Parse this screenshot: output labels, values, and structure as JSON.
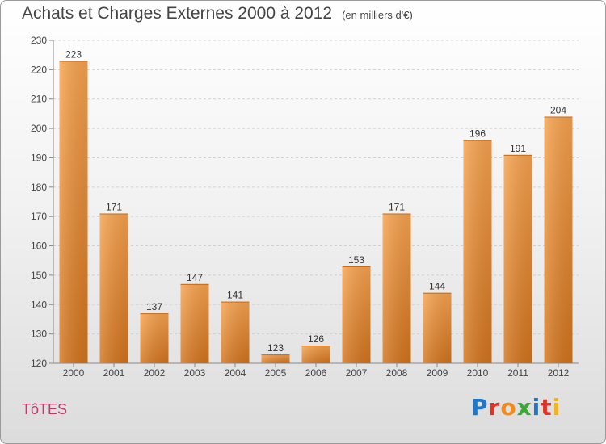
{
  "title": "Achats et Charges Externes 2000 à 2012",
  "subtitle": "(en milliers d'€)",
  "footer": {
    "commune": "TôTES",
    "logo_letters": [
      {
        "ch": "P",
        "color": "#1f77c9"
      },
      {
        "ch": "r",
        "color": "#e0342b"
      },
      {
        "ch": "o",
        "color": "#f28a1c"
      },
      {
        "ch": "x",
        "color": "#3aa935"
      },
      {
        "ch": "i",
        "color": "#1f77c9"
      },
      {
        "ch": "t",
        "color": "#e0342b"
      },
      {
        "ch": "i",
        "color": "#f2b41c"
      }
    ]
  },
  "chart_data": {
    "type": "bar",
    "categories": [
      "2000",
      "2001",
      "2002",
      "2003",
      "2004",
      "2005",
      "2006",
      "2007",
      "2008",
      "2009",
      "2010",
      "2011",
      "2012"
    ],
    "values": [
      223,
      171,
      137,
      147,
      141,
      123,
      126,
      153,
      171,
      144,
      196,
      191,
      204
    ],
    "ylim": [
      120,
      230
    ],
    "yticks": [
      120,
      130,
      140,
      150,
      160,
      170,
      180,
      190,
      200,
      210,
      220,
      230
    ],
    "grid": true,
    "bar_color": "#f0902f"
  }
}
